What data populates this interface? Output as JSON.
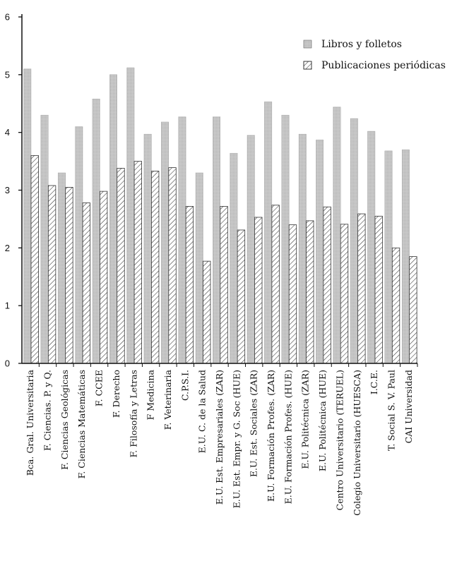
{
  "chart_data": {
    "type": "bar",
    "title": "",
    "xlabel": "",
    "ylabel": "",
    "ylim": [
      0,
      6
    ],
    "yticks": [
      "0",
      "1",
      "2",
      "3",
      "4",
      "5",
      "6"
    ],
    "grid": false,
    "legend_position": "top-right",
    "categories": [
      "Bca. Gral. Universitaria",
      "F. Ciencias. P. y Q.",
      "F. Ciencias Geológicas",
      "F. Ciencias Matemáticas",
      "F. CCEE",
      "F. Derecho",
      "F. Filosofía y Letras",
      "F Medicina",
      "F. Veterinaria",
      "C.P.S.I.",
      "E.U. C. de la Salud",
      "E.U. Est. Empresariales (ZAR)",
      "E.U. Est. Empr. y G. Soc (HUE)",
      "E.U. Est. Sociales (ZAR)",
      "E.U. Formación Profes. (ZAR)",
      "E.U. Formación Profes. (HUE)",
      "E.U. Politécnica (ZAR)",
      "E.U. Politécnica (HUE)",
      "Centro Universitario (TERUEL)",
      "Colegio Universitario (HUESCA)",
      "I.C.E.",
      "T. Social S. V. Paul",
      "CAI Universidad"
    ],
    "series": [
      {
        "name": "Libros y folletos",
        "values": [
          5.1,
          4.3,
          3.3,
          4.1,
          4.58,
          5.0,
          5.12,
          3.97,
          4.18,
          4.27,
          3.3,
          4.27,
          3.64,
          3.95,
          4.53,
          4.3,
          3.97,
          3.87,
          4.44,
          4.24,
          4.02,
          3.68,
          3.7
        ]
      },
      {
        "name": "Publicaciones periódicas",
        "values": [
          3.6,
          3.08,
          3.05,
          2.78,
          2.98,
          3.38,
          3.5,
          3.33,
          3.39,
          2.72,
          1.77,
          2.72,
          2.31,
          2.53,
          2.74,
          2.4,
          2.47,
          2.71,
          2.41,
          2.59,
          2.55,
          2.0,
          1.85
        ]
      }
    ]
  },
  "colors": {
    "series1": "#c4c4c4",
    "series2_fill": "#ffffff",
    "series2_hatch": "#333333",
    "axis": "#111111"
  }
}
